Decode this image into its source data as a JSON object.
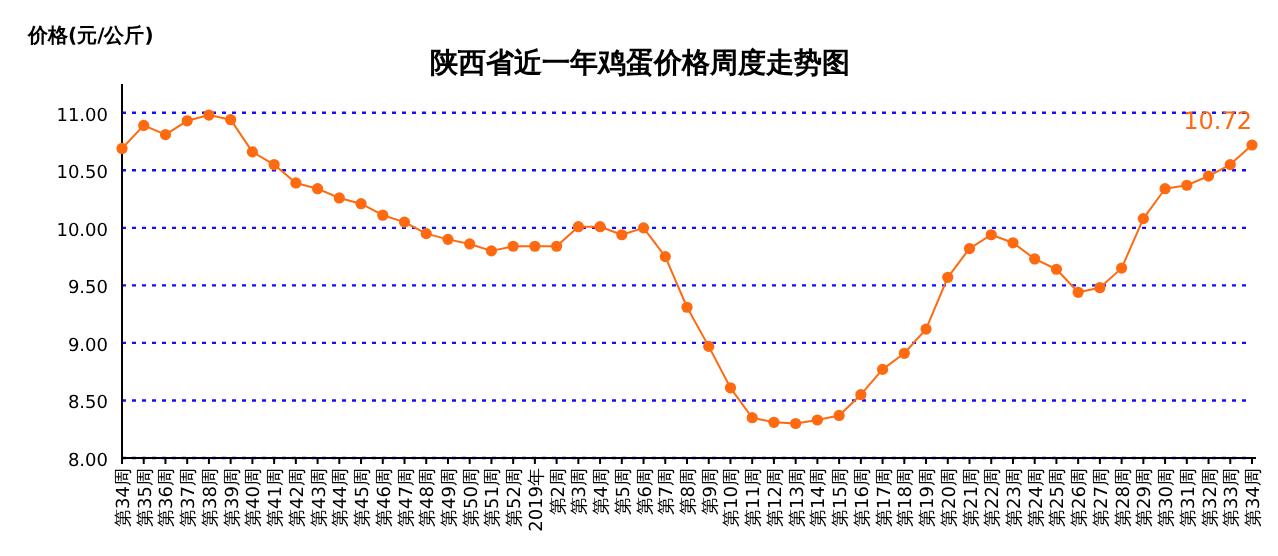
{
  "chart_data": {
    "type": "line",
    "title": "陕西省近一年鸡蛋价格周度走势图",
    "ylabel": "价格(元/公斤)",
    "categories": [
      "第34周",
      "第35周",
      "第36周",
      "第37周",
      "第38周",
      "第39周",
      "第40周",
      "第41周",
      "第42周",
      "第43周",
      "第44周",
      "第45周",
      "第46周",
      "第47周",
      "第48周",
      "第49周",
      "第50周",
      "第51周",
      "第52周",
      "2019年",
      "第2周",
      "第3周",
      "第4周",
      "第5周",
      "第6周",
      "第7周",
      "第8周",
      "第9周",
      "第10周",
      "第11周",
      "第12周",
      "第13周",
      "第14周",
      "第15周",
      "第16周",
      "第17周",
      "第18周",
      "第19周",
      "第20周",
      "第21周",
      "第22周",
      "第23周",
      "第24周",
      "第25周",
      "第26周",
      "第27周",
      "第28周",
      "第29周",
      "第30周",
      "第31周",
      "第32周",
      "第33周",
      "第34周"
    ],
    "series": [
      {
        "color": "#ff6a10",
        "values": [
          10.69,
          10.89,
          10.81,
          10.93,
          10.98,
          10.94,
          10.66,
          10.55,
          10.39,
          10.34,
          10.26,
          10.21,
          10.11,
          10.05,
          9.95,
          9.9,
          9.86,
          9.8,
          9.84,
          9.84,
          9.84,
          10.01,
          10.01,
          9.94,
          10.0,
          9.75,
          9.31,
          8.97,
          8.61,
          8.35,
          8.31,
          8.3,
          8.33,
          8.37,
          8.55,
          8.77,
          8.91,
          9.12,
          9.57,
          9.82,
          9.94,
          9.87,
          9.73,
          9.64,
          9.44,
          9.48,
          9.65,
          10.08,
          10.34,
          10.37,
          10.45,
          10.55,
          10.72
        ],
        "value_labels": [
          null,
          null,
          null,
          null,
          null,
          null,
          null,
          null,
          null,
          null,
          null,
          null,
          null,
          null,
          null,
          null,
          null,
          null,
          null,
          null,
          null,
          null,
          null,
          null,
          null,
          null,
          null,
          null,
          null,
          null,
          null,
          null,
          null,
          null,
          null,
          null,
          null,
          null,
          null,
          null,
          null,
          null,
          null,
          null,
          null,
          null,
          null,
          null,
          null,
          null,
          null,
          null,
          "10.72"
        ]
      }
    ],
    "ylim": [
      8,
      11.25
    ],
    "yticks": [
      {
        "value": 8,
        "label": "8.00"
      },
      {
        "value": 8.5,
        "label": "8.50"
      },
      {
        "value": 9,
        "label": "9.00"
      },
      {
        "value": 9.5,
        "label": "9.50"
      },
      {
        "value": 10,
        "label": "10.00"
      },
      {
        "value": 10.5,
        "label": "10.50"
      },
      {
        "value": 11,
        "label": "11.00"
      }
    ],
    "grid": "y",
    "marker": "circle",
    "line_style": "solid"
  }
}
